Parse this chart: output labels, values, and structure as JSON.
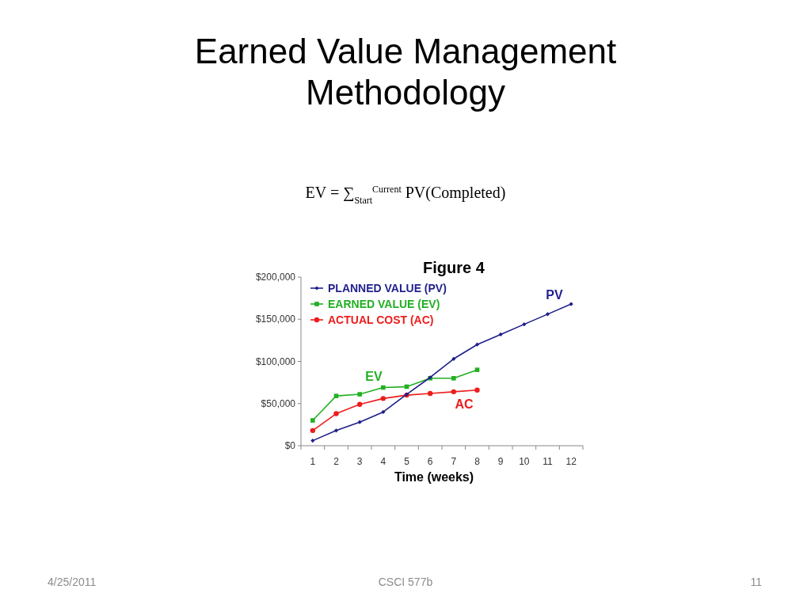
{
  "chart_data": {
    "type": "line",
    "title": "Earned Value Management Methodology",
    "subtitle": "Figure 4",
    "xlabel": "Time (weeks)",
    "categories": [
      "1",
      "2",
      "3",
      "4",
      "5",
      "6",
      "7",
      "8",
      "9",
      "10",
      "11",
      "12"
    ],
    "ylim": [
      0,
      200000
    ],
    "yticks": [
      {
        "value": 0,
        "label": "$0"
      },
      {
        "value": 50000,
        "label": "$50,000"
      },
      {
        "value": 100000,
        "label": "$100,000"
      },
      {
        "value": 150000,
        "label": "$150,000"
      },
      {
        "value": 200000,
        "label": "$200,000"
      }
    ],
    "series": [
      {
        "name": "PLANNED VALUE (PV)",
        "color": "#1f1f8c",
        "marker": "diamond",
        "values": [
          6000,
          18000,
          28000,
          40000,
          61000,
          81000,
          103000,
          120000,
          132000,
          144000,
          156000,
          168000
        ]
      },
      {
        "name": "EARNED VALUE (EV)",
        "color": "#22b022",
        "marker": "square",
        "values": [
          30000,
          59000,
          61000,
          69000,
          70000,
          80000,
          80000,
          90000,
          null,
          null,
          null,
          null
        ]
      },
      {
        "name": "ACTUAL COST (AC)",
        "color": "#ee1c1c",
        "marker": "circle",
        "values": [
          18000,
          38000,
          49000,
          56000,
          60000,
          62000,
          64000,
          66000,
          null,
          null,
          null,
          null
        ]
      }
    ],
    "legend": "top left",
    "grid": false,
    "annotations": [
      "EV = ∑$_{Start}$$^{Current}$ PV(Completed)",
      "4/25/2011",
      "CSCI 577b",
      "11",
      "PV",
      "EV",
      "AC"
    ]
  }
}
